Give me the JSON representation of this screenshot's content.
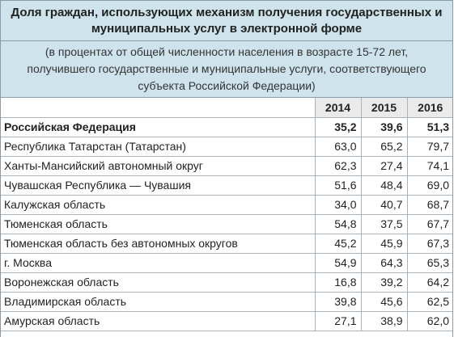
{
  "title": {
    "line1": "Доля граждан, использующих механизм получения государственных и",
    "line2": "муниципальных услуг в электронной форме"
  },
  "subtitle": {
    "line1": "(в процентах от общей численности населения в возрасте 15-72 лет,",
    "line2": "получившего государственные и муниципальные услуги, соответствующего",
    "line3": "субъекта Российской Федерации)"
  },
  "table": {
    "columns": [
      "",
      "2014",
      "2015",
      "2016"
    ],
    "rows": [
      {
        "region": "Российская Федерация",
        "v2014": "35,2",
        "v2015": "39,6",
        "v2016": "51,3"
      },
      {
        "region": "Республика Татарстан (Татарстан)",
        "v2014": "63,0",
        "v2015": "65,2",
        "v2016": "79,7"
      },
      {
        "region": "Ханты-Мансийский автономный округ",
        "v2014": "62,3",
        "v2015": "27,4",
        "v2016": "74,1"
      },
      {
        "region": "Чувашская Республика — Чувашия",
        "v2014": "51,6",
        "v2015": "48,4",
        "v2016": "69,0"
      },
      {
        "region": "Калужская область",
        "v2014": "34,0",
        "v2015": "40,7",
        "v2016": "68,7"
      },
      {
        "region": "Тюменская область",
        "v2014": "54,8",
        "v2015": "37,5",
        "v2016": "67,7"
      },
      {
        "region": "Тюменская область без автономных округов",
        "v2014": "45,2",
        "v2015": "45,9",
        "v2016": "67,3"
      },
      {
        "region": "г. Москва",
        "v2014": "54,9",
        "v2015": "64,3",
        "v2016": "65,3"
      },
      {
        "region": "Воронежская область",
        "v2014": "16,8",
        "v2015": "39,2",
        "v2016": "64,2"
      },
      {
        "region": "Владимирская область",
        "v2014": "39,8",
        "v2015": "45,6",
        "v2016": "62,5"
      },
      {
        "region": "Амурская область",
        "v2014": "27,1",
        "v2015": "38,9",
        "v2016": "62,0"
      }
    ]
  },
  "colors": {
    "header_bg": "#cfe3ec",
    "year_header_bg": "#eaeaea",
    "border": "#a7b2bb"
  }
}
